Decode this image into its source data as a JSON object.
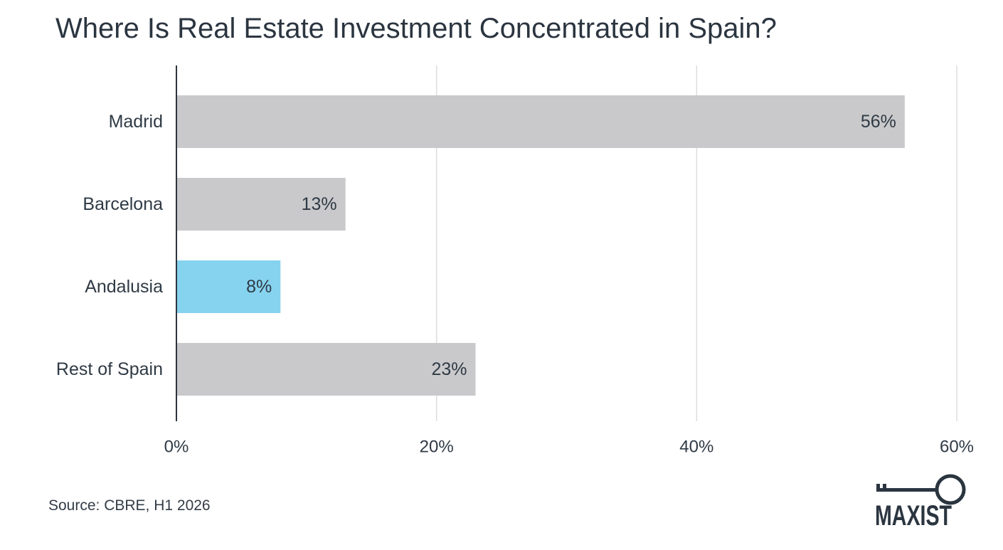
{
  "title": "Where Is Real Estate Investment Concentrated in Spain?",
  "source": "Source: CBRE, H1 2026",
  "brand": "MAXIST",
  "colors": {
    "bar": "#c9c9cb",
    "highlight": "#86d3ef",
    "axis": "#2b3540",
    "grid": "#dddddd",
    "text": "#2f3a45"
  },
  "chart_data": {
    "type": "bar",
    "orientation": "horizontal",
    "title": "Where Is Real Estate Investment Concentrated in Spain?",
    "categories": [
      "Madrid",
      "Barcelona",
      "Andalusia",
      "Rest of Spain"
    ],
    "values": [
      56,
      13,
      8,
      23
    ],
    "data_labels": [
      "56%",
      "13%",
      "8%",
      "23%"
    ],
    "highlighted": [
      "Andalusia"
    ],
    "xlim": [
      0,
      60
    ],
    "xticks": [
      0,
      20,
      40,
      60
    ],
    "xtick_labels": [
      "0%",
      "20%",
      "40%",
      "60%"
    ],
    "grid": true,
    "legend": "none"
  }
}
